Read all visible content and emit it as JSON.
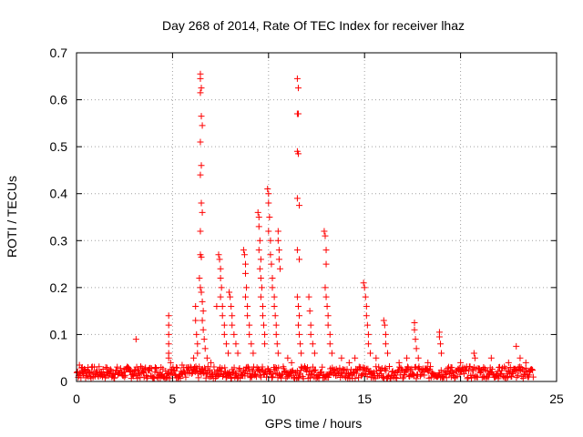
{
  "chart_data": {
    "type": "scatter",
    "title": "Day 268 of 2014, Rate Of TEC Index for receiver lhaz",
    "xlabel": "GPS time / hours",
    "ylabel": "ROTI / TECUs",
    "xlim": [
      0,
      25
    ],
    "ylim": [
      0,
      0.7
    ],
    "xticks": [
      0,
      5,
      10,
      15,
      20,
      25
    ],
    "yticks": [
      0,
      0.1,
      0.2,
      0.3,
      0.4,
      0.5,
      0.6,
      0.7
    ],
    "xtick_labels": [
      "0",
      "5",
      "10",
      "15",
      "20",
      "25"
    ],
    "ytick_labels": [
      "0",
      "0.1",
      "0.2",
      "0.3",
      "0.4",
      "0.5",
      "0.6",
      "0.7"
    ],
    "grid": true,
    "marker": "+",
    "color": "#ff0000",
    "series": [
      {
        "points": [
          [
            0.05,
            0.02
          ],
          [
            0.15,
            0.035
          ],
          [
            0.3,
            0.03
          ],
          [
            0.45,
            0.025
          ],
          [
            0.6,
            0.03
          ],
          [
            0.8,
            0.02
          ],
          [
            1.0,
            0.015
          ],
          [
            1.3,
            0.018
          ],
          [
            1.6,
            0.02
          ],
          [
            1.9,
            0.015
          ],
          [
            2.2,
            0.018
          ],
          [
            2.5,
            0.02
          ],
          [
            2.8,
            0.022
          ],
          [
            3.1,
            0.09
          ],
          [
            3.2,
            0.025
          ],
          [
            3.5,
            0.02
          ],
          [
            3.8,
            0.028
          ],
          [
            4.1,
            0.03
          ],
          [
            4.4,
            0.03
          ],
          [
            4.8,
            0.14
          ],
          [
            4.8,
            0.12
          ],
          [
            4.8,
            0.1
          ],
          [
            4.8,
            0.08
          ],
          [
            4.8,
            0.06
          ],
          [
            4.8,
            0.05
          ],
          [
            4.9,
            0.04
          ],
          [
            5.2,
            0.03
          ],
          [
            5.5,
            0.035
          ],
          [
            5.8,
            0.03
          ],
          [
            6.1,
            0.05
          ],
          [
            6.2,
            0.16
          ],
          [
            6.2,
            0.13
          ],
          [
            6.25,
            0.1
          ],
          [
            6.3,
            0.08
          ],
          [
            6.3,
            0.06
          ],
          [
            6.45,
            0.655
          ],
          [
            6.45,
            0.645
          ],
          [
            6.5,
            0.625
          ],
          [
            6.45,
            0.615
          ],
          [
            6.5,
            0.565
          ],
          [
            6.55,
            0.545
          ],
          [
            6.45,
            0.51
          ],
          [
            6.5,
            0.46
          ],
          [
            6.45,
            0.44
          ],
          [
            6.5,
            0.38
          ],
          [
            6.55,
            0.36
          ],
          [
            6.45,
            0.32
          ],
          [
            6.45,
            0.27
          ],
          [
            6.5,
            0.265
          ],
          [
            6.4,
            0.22
          ],
          [
            6.45,
            0.2
          ],
          [
            6.5,
            0.19
          ],
          [
            6.55,
            0.17
          ],
          [
            6.6,
            0.15
          ],
          [
            6.55,
            0.13
          ],
          [
            6.6,
            0.11
          ],
          [
            6.65,
            0.09
          ],
          [
            6.7,
            0.07
          ],
          [
            6.8,
            0.05
          ],
          [
            7.0,
            0.04
          ],
          [
            7.3,
            0.16
          ],
          [
            7.4,
            0.27
          ],
          [
            7.45,
            0.26
          ],
          [
            7.5,
            0.24
          ],
          [
            7.5,
            0.22
          ],
          [
            7.55,
            0.2
          ],
          [
            7.5,
            0.18
          ],
          [
            7.6,
            0.16
          ],
          [
            7.6,
            0.14
          ],
          [
            7.7,
            0.12
          ],
          [
            7.7,
            0.1
          ],
          [
            7.8,
            0.08
          ],
          [
            7.9,
            0.06
          ],
          [
            7.95,
            0.19
          ],
          [
            8.0,
            0.18
          ],
          [
            8.05,
            0.16
          ],
          [
            8.1,
            0.14
          ],
          [
            8.1,
            0.12
          ],
          [
            8.2,
            0.1
          ],
          [
            8.3,
            0.08
          ],
          [
            8.4,
            0.06
          ],
          [
            8.7,
            0.28
          ],
          [
            8.75,
            0.27
          ],
          [
            8.8,
            0.25
          ],
          [
            8.8,
            0.23
          ],
          [
            8.85,
            0.2
          ],
          [
            8.8,
            0.18
          ],
          [
            8.9,
            0.16
          ],
          [
            8.9,
            0.14
          ],
          [
            9.0,
            0.12
          ],
          [
            9.0,
            0.1
          ],
          [
            9.1,
            0.08
          ],
          [
            9.2,
            0.06
          ],
          [
            9.45,
            0.36
          ],
          [
            9.5,
            0.35
          ],
          [
            9.5,
            0.33
          ],
          [
            9.55,
            0.3
          ],
          [
            9.5,
            0.28
          ],
          [
            9.6,
            0.26
          ],
          [
            9.55,
            0.24
          ],
          [
            9.6,
            0.22
          ],
          [
            9.65,
            0.2
          ],
          [
            9.6,
            0.18
          ],
          [
            9.7,
            0.16
          ],
          [
            9.7,
            0.14
          ],
          [
            9.75,
            0.12
          ],
          [
            9.8,
            0.1
          ],
          [
            9.8,
            0.08
          ],
          [
            9.95,
            0.41
          ],
          [
            10.0,
            0.4
          ],
          [
            10.0,
            0.38
          ],
          [
            10.05,
            0.35
          ],
          [
            10.0,
            0.32
          ],
          [
            10.1,
            0.3
          ],
          [
            10.1,
            0.27
          ],
          [
            10.15,
            0.25
          ],
          [
            10.2,
            0.22
          ],
          [
            10.2,
            0.2
          ],
          [
            10.3,
            0.18
          ],
          [
            10.3,
            0.16
          ],
          [
            10.35,
            0.14
          ],
          [
            10.4,
            0.12
          ],
          [
            10.4,
            0.1
          ],
          [
            10.45,
            0.08
          ],
          [
            10.5,
            0.06
          ],
          [
            10.5,
            0.32
          ],
          [
            10.5,
            0.3
          ],
          [
            10.55,
            0.28
          ],
          [
            10.55,
            0.26
          ],
          [
            10.6,
            0.24
          ],
          [
            11.0,
            0.05
          ],
          [
            11.2,
            0.04
          ],
          [
            11.5,
            0.645
          ],
          [
            11.55,
            0.625
          ],
          [
            11.5,
            0.57
          ],
          [
            11.55,
            0.57
          ],
          [
            11.5,
            0.49
          ],
          [
            11.55,
            0.485
          ],
          [
            11.5,
            0.39
          ],
          [
            11.6,
            0.375
          ],
          [
            11.5,
            0.28
          ],
          [
            11.6,
            0.26
          ],
          [
            11.5,
            0.18
          ],
          [
            11.55,
            0.16
          ],
          [
            11.6,
            0.14
          ],
          [
            11.55,
            0.12
          ],
          [
            11.6,
            0.1
          ],
          [
            11.65,
            0.08
          ],
          [
            11.7,
            0.06
          ],
          [
            12.1,
            0.18
          ],
          [
            12.15,
            0.15
          ],
          [
            12.2,
            0.12
          ],
          [
            12.2,
            0.1
          ],
          [
            12.3,
            0.08
          ],
          [
            12.4,
            0.06
          ],
          [
            12.9,
            0.32
          ],
          [
            12.95,
            0.31
          ],
          [
            13.0,
            0.28
          ],
          [
            13.0,
            0.25
          ],
          [
            12.95,
            0.2
          ],
          [
            13.0,
            0.18
          ],
          [
            13.05,
            0.16
          ],
          [
            13.1,
            0.14
          ],
          [
            13.1,
            0.12
          ],
          [
            13.2,
            0.1
          ],
          [
            13.2,
            0.08
          ],
          [
            13.3,
            0.06
          ],
          [
            13.8,
            0.05
          ],
          [
            14.2,
            0.04
          ],
          [
            14.5,
            0.05
          ],
          [
            14.95,
            0.21
          ],
          [
            15.0,
            0.2
          ],
          [
            15.05,
            0.18
          ],
          [
            15.1,
            0.16
          ],
          [
            15.1,
            0.14
          ],
          [
            15.15,
            0.12
          ],
          [
            15.2,
            0.1
          ],
          [
            15.2,
            0.08
          ],
          [
            15.3,
            0.06
          ],
          [
            15.6,
            0.05
          ],
          [
            16.0,
            0.13
          ],
          [
            16.05,
            0.12
          ],
          [
            16.1,
            0.1
          ],
          [
            16.1,
            0.08
          ],
          [
            16.2,
            0.06
          ],
          [
            16.8,
            0.04
          ],
          [
            17.2,
            0.05
          ],
          [
            17.6,
            0.125
          ],
          [
            17.6,
            0.11
          ],
          [
            17.65,
            0.09
          ],
          [
            17.7,
            0.07
          ],
          [
            17.8,
            0.05
          ],
          [
            18.3,
            0.04
          ],
          [
            18.9,
            0.105
          ],
          [
            18.9,
            0.095
          ],
          [
            18.95,
            0.08
          ],
          [
            19.0,
            0.06
          ],
          [
            19.5,
            0.03
          ],
          [
            20.0,
            0.04
          ],
          [
            20.7,
            0.06
          ],
          [
            20.75,
            0.05
          ],
          [
            21.2,
            0.03
          ],
          [
            21.6,
            0.05
          ],
          [
            22.0,
            0.03
          ],
          [
            22.5,
            0.04
          ],
          [
            22.9,
            0.075
          ],
          [
            23.1,
            0.05
          ],
          [
            23.4,
            0.04
          ],
          [
            23.6,
            0.02
          ]
        ]
      }
    ]
  }
}
